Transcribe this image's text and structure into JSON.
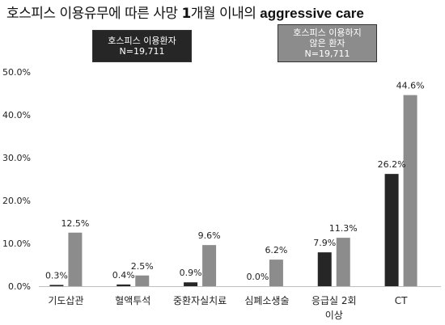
{
  "title": {
    "part1": "호스피스 이용유무에 따른 사망 ",
    "part2": "1",
    "part3": "개월 이내의 ",
    "part4": "aggressive care"
  },
  "legend": [
    {
      "line1": "호스피스 이용환자",
      "line2": "N=19,711",
      "line3": "",
      "color": "#262626"
    },
    {
      "line1": "호스피스 이용하지",
      "line2": "않은 환자",
      "line3": "N=19,711",
      "color": "#8c8c8c"
    }
  ],
  "chart_data": {
    "type": "bar",
    "title": "호스피스 이용유무에 따른 사망 1개월 이내의 aggressive care",
    "categories": [
      "기도삽관",
      "혈액투석",
      "중환자실치료",
      "심폐소생술",
      "응급실 2회 이상",
      "CT"
    ],
    "category_lines": [
      [
        "기도삽관"
      ],
      [
        "혈액투석"
      ],
      [
        "중환자실치료"
      ],
      [
        "심폐소생술"
      ],
      [
        "응급실    2회",
        "이상"
      ],
      [
        "CT"
      ]
    ],
    "series": [
      {
        "name": "호스피스 이용환자 N=19,711",
        "values": [
          0.3,
          0.4,
          0.9,
          0.0,
          7.9,
          26.2
        ],
        "labels": [
          "0.3%",
          "0.4%",
          "0.9%",
          "0.0%",
          "7.9%",
          "26.2%"
        ],
        "color": "#262626"
      },
      {
        "name": "호스피스 이용하지 않은 환자 N=19,711",
        "values": [
          12.5,
          2.5,
          9.6,
          6.2,
          11.3,
          44.6
        ],
        "labels": [
          "12.5%",
          "2.5%",
          "9.6%",
          "6.2%",
          "11.3%",
          "44.6%"
        ],
        "color": "#8c8c8c"
      }
    ],
    "yticks": [
      "0.0%",
      "10.0%",
      "20.0%",
      "30.0%",
      "40.0%",
      "50.0%"
    ],
    "ylim": [
      0,
      50
    ],
    "grid": false,
    "legend_position": "top"
  }
}
